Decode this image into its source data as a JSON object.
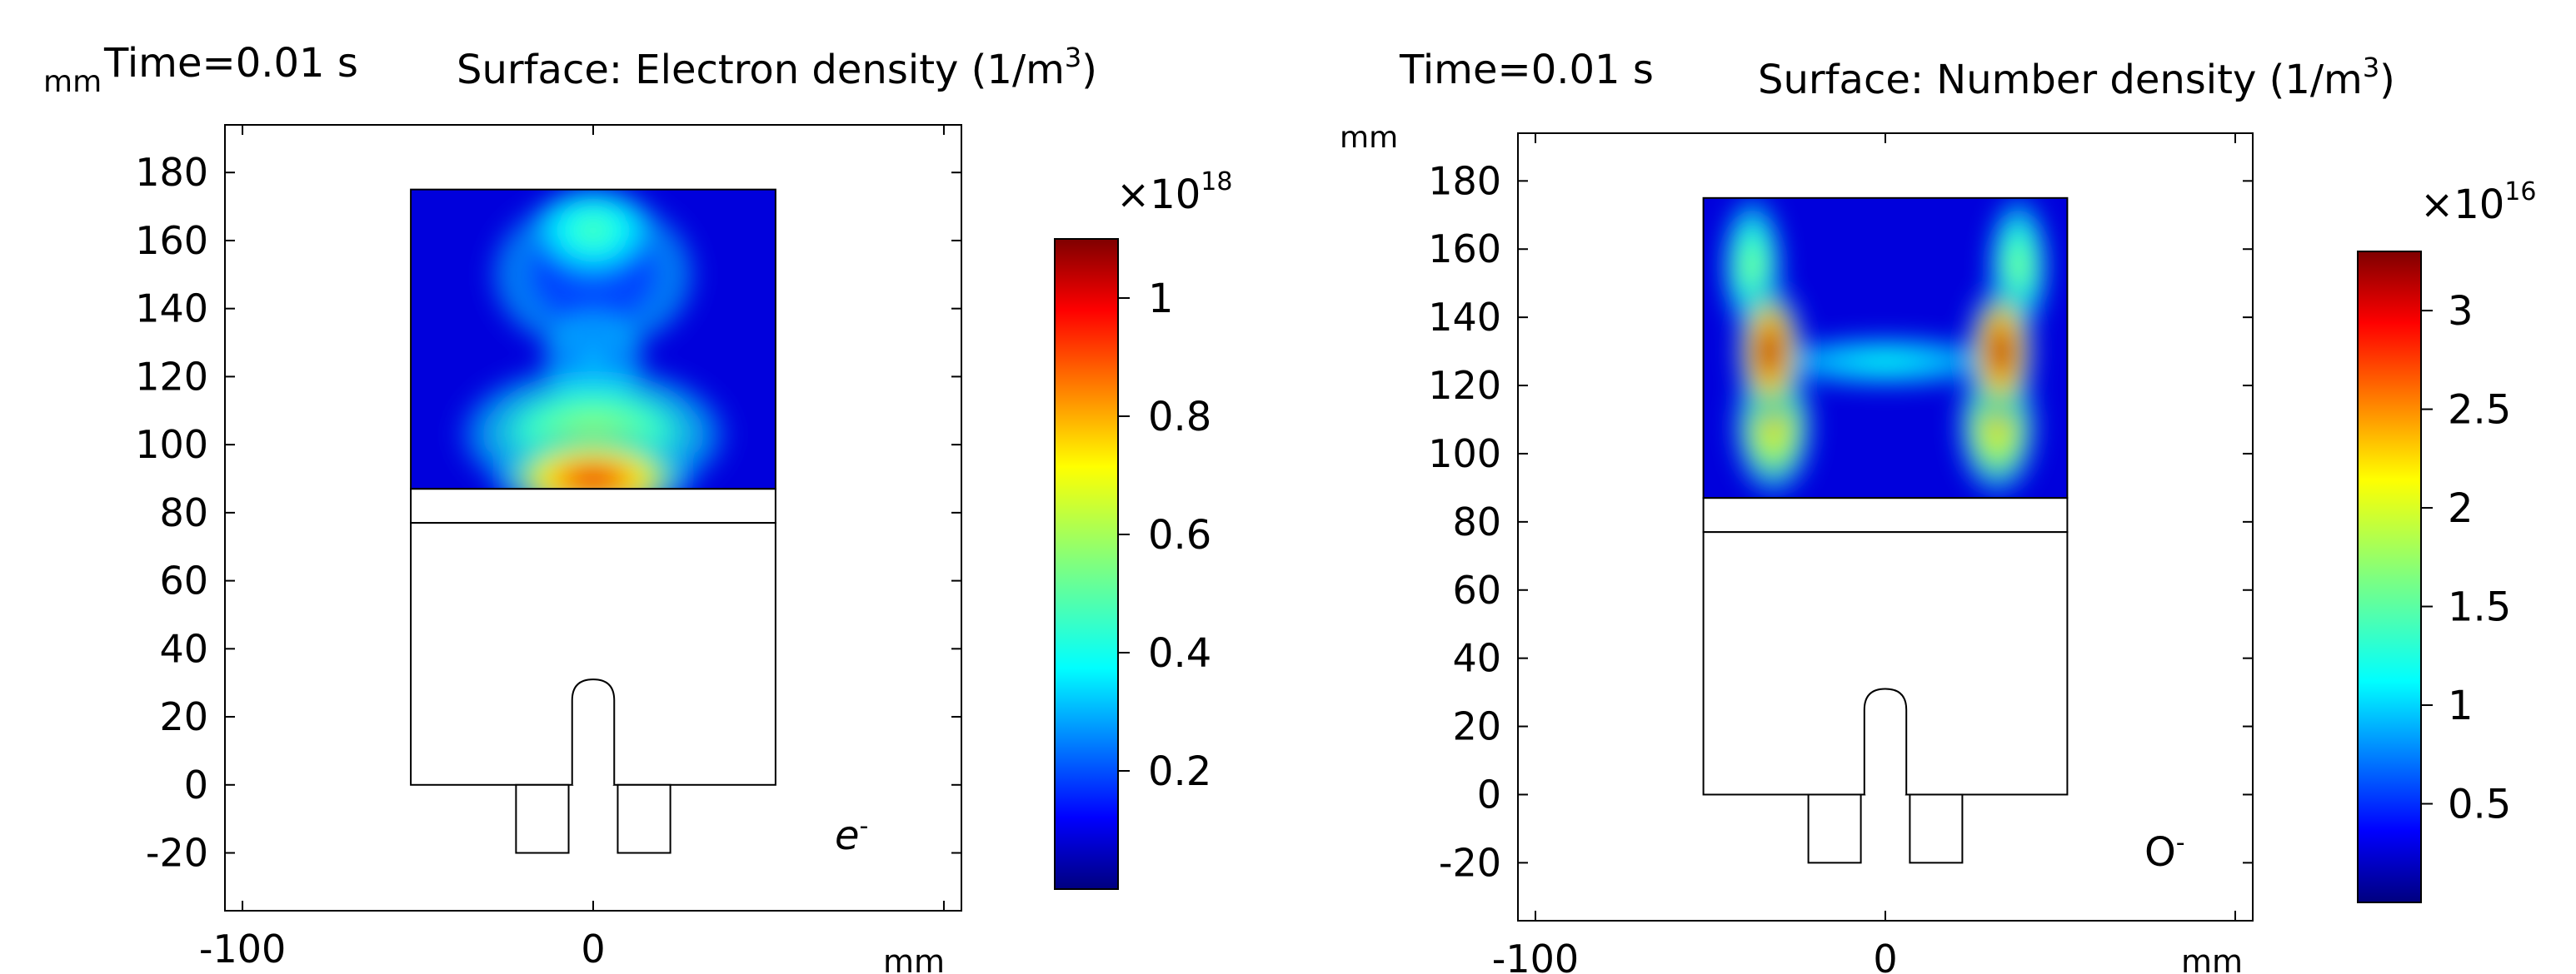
{
  "chart_data": [
    {
      "type": "heatmap",
      "time_label": "Time=0.01 s",
      "title": "Surface: Electron density (1/m",
      "title_sup": "3",
      "title_end": ")",
      "xlabel": "mm",
      "ylabel": "mm",
      "xlim": [
        -105,
        105
      ],
      "ylim": [
        -37,
        194
      ],
      "x_ticks": [
        "-100",
        "0"
      ],
      "x_tick_values": [
        -100,
        0
      ],
      "y_ticks": [
        "180",
        "160",
        "140",
        "120",
        "100",
        "80",
        "60",
        "40",
        "20",
        "0",
        "-20"
      ],
      "y_tick_values": [
        180,
        160,
        140,
        120,
        100,
        80,
        60,
        40,
        20,
        0,
        -20
      ],
      "species_label": "e",
      "species_sup": "-",
      "species_italic": true,
      "colorbar": {
        "colormap": "jet",
        "multiplier_base": "×10",
        "multiplier_exp": "18",
        "range": [
          0.0,
          1.1
        ],
        "tick_labels": [
          "1",
          "0.8",
          "0.6",
          "0.4",
          "0.2"
        ],
        "tick_values": [
          1.0,
          0.8,
          0.6,
          0.4,
          0.2
        ]
      },
      "geometry_mm": {
        "plasma_region": {
          "x": [
            -52,
            52
          ],
          "y": [
            87,
            175
          ]
        },
        "window_layer": {
          "x": [
            -52,
            52
          ],
          "y": [
            77,
            87
          ]
        },
        "chamber": {
          "x": [
            -52,
            52
          ],
          "y": [
            0,
            77
          ]
        },
        "antenna_rod": {
          "x": [
            -6,
            6
          ],
          "y": [
            0,
            31
          ]
        },
        "feet": [
          {
            "x": [
              -22,
              -7
            ],
            "y": [
              -20,
              0
            ]
          },
          {
            "x": [
              7,
              22
            ],
            "y": [
              -20,
              0
            ]
          }
        ]
      },
      "field_features": [
        {
          "x_mm": 0,
          "y_mm": 90,
          "sx_mm": 20,
          "sy_mm": 9,
          "value": 1.0
        },
        {
          "x_mm": 0,
          "y_mm": 103,
          "sx_mm": 26,
          "sy_mm": 14,
          "value": 0.6
        },
        {
          "x_mm": 0,
          "y_mm": 125,
          "sx_mm": 10,
          "sy_mm": 10,
          "value": 0.32
        },
        {
          "x_mm": 0,
          "y_mm": 163,
          "sx_mm": 12,
          "sy_mm": 9,
          "value": 0.5
        },
        {
          "x_mm": 0,
          "y_mm": 150,
          "sx_mm": 20,
          "sy_mm": 16,
          "value": 0.22
        }
      ]
    },
    {
      "type": "heatmap",
      "time_label": "Time=0.01 s",
      "title": "Surface: Number density (1/m",
      "title_sup": "3",
      "title_end": ")",
      "xlabel": "mm",
      "ylabel": "mm",
      "xlim": [
        -105,
        105
      ],
      "ylim": [
        -37,
        194
      ],
      "x_ticks": [
        "-100",
        "0"
      ],
      "x_tick_values": [
        -100,
        0
      ],
      "y_ticks": [
        "180",
        "160",
        "140",
        "120",
        "100",
        "80",
        "60",
        "40",
        "20",
        "0",
        "-20"
      ],
      "y_tick_values": [
        180,
        160,
        140,
        120,
        100,
        80,
        60,
        40,
        20,
        0,
        -20
      ],
      "species_label": "O",
      "species_sup": "-",
      "species_italic": false,
      "colorbar": {
        "colormap": "jet",
        "multiplier_base": "×10",
        "multiplier_exp": "16",
        "range": [
          0.0,
          3.3
        ],
        "tick_labels": [
          "3",
          "2.5",
          "2",
          "1.5",
          "1",
          "0.5"
        ],
        "tick_values": [
          3.0,
          2.5,
          2.0,
          1.5,
          1.0,
          0.5
        ]
      },
      "geometry_mm": {
        "plasma_region": {
          "x": [
            -52,
            52
          ],
          "y": [
            87,
            175
          ]
        },
        "window_layer": {
          "x": [
            -52,
            52
          ],
          "y": [
            77,
            87
          ]
        },
        "chamber": {
          "x": [
            -52,
            52
          ],
          "y": [
            0,
            77
          ]
        },
        "antenna_rod": {
          "x": [
            -6,
            6
          ],
          "y": [
            0,
            31
          ]
        },
        "feet": [
          {
            "x": [
              -22,
              -7
            ],
            "y": [
              -20,
              0
            ]
          },
          {
            "x": [
              7,
              22
            ],
            "y": [
              -20,
              0
            ]
          }
        ]
      },
      "field_features": [
        {
          "x_mm": -33,
          "y_mm": 130,
          "sx_mm": 7,
          "sy_mm": 14,
          "value": 3.2
        },
        {
          "x_mm": 33,
          "y_mm": 130,
          "sx_mm": 7,
          "sy_mm": 14,
          "value": 3.2
        },
        {
          "x_mm": -32,
          "y_mm": 108,
          "sx_mm": 8,
          "sy_mm": 14,
          "value": 2.3
        },
        {
          "x_mm": 32,
          "y_mm": 108,
          "sx_mm": 8,
          "sy_mm": 14,
          "value": 2.3
        },
        {
          "x_mm": -38,
          "y_mm": 155,
          "sx_mm": 6,
          "sy_mm": 14,
          "value": 1.7
        },
        {
          "x_mm": 38,
          "y_mm": 155,
          "sx_mm": 6,
          "sy_mm": 14,
          "value": 1.7
        },
        {
          "x_mm": 0,
          "y_mm": 127,
          "sx_mm": 22,
          "sy_mm": 5,
          "value": 1.2
        }
      ]
    }
  ]
}
